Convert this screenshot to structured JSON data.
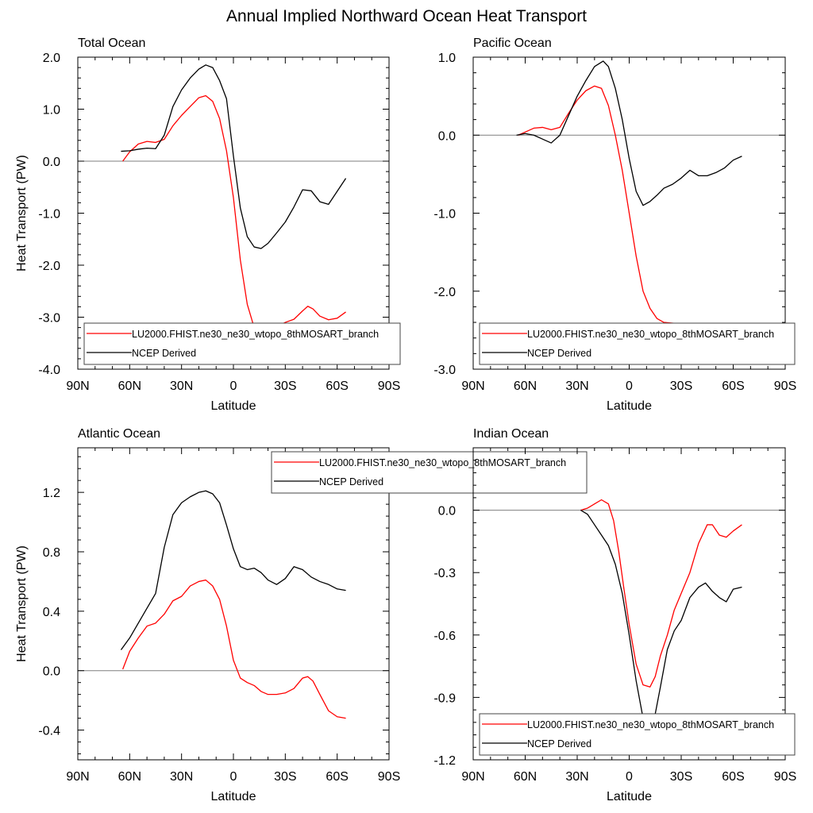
{
  "figure_title": "Annual Implied Northward Ocean Heat Transport",
  "colors": {
    "model": "#ff0000",
    "ncep": "#000000",
    "zero_line": "#7f7f7f",
    "axis": "#000000"
  },
  "chart_data": [
    {
      "type": "line",
      "title": "Total Ocean",
      "xlabel": "Latitude",
      "ylabel": "Heat Transport (PW)",
      "xlim": [
        90,
        -90
      ],
      "ylim": [
        -4.0,
        2.0
      ],
      "xticks": [
        90,
        60,
        30,
        0,
        -30,
        -60,
        -90
      ],
      "xtick_labels": [
        "90N",
        "60N",
        "30N",
        "0",
        "30S",
        "60S",
        "90S"
      ],
      "yticks": [
        -4.0,
        -3.0,
        -2.0,
        -1.0,
        0.0,
        1.0,
        2.0
      ],
      "ytick_labels": [
        "-4.0",
        "-3.0",
        "-2.0",
        "-1.0",
        "0.0",
        "1.0",
        "2.0"
      ],
      "grid": false,
      "legend_position": "bottom",
      "series": [
        {
          "name": "LU2000.FHIST.ne30_ne30_wtopo_8thMOSART_branch",
          "color": "#ff0000",
          "x": [
            64,
            60,
            55,
            50,
            45,
            40,
            35,
            30,
            25,
            20,
            16,
            12,
            8,
            4,
            0,
            -4,
            -8,
            -12,
            -16,
            -20,
            -25,
            -30,
            -35,
            -40,
            -43,
            -46,
            -50,
            -55,
            -60,
            -65
          ],
          "y": [
            0.0,
            0.18,
            0.33,
            0.38,
            0.36,
            0.42,
            0.68,
            0.88,
            1.05,
            1.22,
            1.26,
            1.15,
            0.82,
            0.2,
            -0.7,
            -1.9,
            -2.75,
            -3.2,
            -3.38,
            -3.3,
            -3.18,
            -3.1,
            -3.04,
            -2.88,
            -2.79,
            -2.84,
            -2.98,
            -3.05,
            -3.02,
            -2.9
          ]
        },
        {
          "name": "NCEP Derived",
          "color": "#000000",
          "x": [
            65,
            60,
            55,
            50,
            45,
            40,
            35,
            30,
            25,
            20,
            16,
            12,
            8,
            4,
            0,
            -4,
            -8,
            -12,
            -16,
            -20,
            -25,
            -30,
            -35,
            -40,
            -45,
            -50,
            -55,
            -60,
            -65
          ],
          "y": [
            0.19,
            0.2,
            0.23,
            0.25,
            0.24,
            0.5,
            1.05,
            1.37,
            1.6,
            1.77,
            1.85,
            1.8,
            1.55,
            1.2,
            0.1,
            -0.9,
            -1.45,
            -1.65,
            -1.68,
            -1.58,
            -1.38,
            -1.17,
            -0.88,
            -0.55,
            -0.57,
            -0.78,
            -0.83,
            -0.58,
            -0.33
          ]
        }
      ]
    },
    {
      "type": "line",
      "title": "Pacific Ocean",
      "xlabel": "Latitude",
      "ylabel": "",
      "xlim": [
        90,
        -90
      ],
      "ylim": [
        -3.0,
        1.0
      ],
      "xticks": [
        90,
        60,
        30,
        0,
        -30,
        -60,
        -90
      ],
      "xtick_labels": [
        "90N",
        "60N",
        "30N",
        "0",
        "30S",
        "60S",
        "90S"
      ],
      "yticks": [
        -3.0,
        -2.0,
        -1.0,
        0.0,
        1.0
      ],
      "ytick_labels": [
        "-3.0",
        "-2.0",
        "-1.0",
        "0.0",
        "1.0"
      ],
      "grid": false,
      "legend_position": "bottom",
      "series": [
        {
          "name": "LU2000.FHIST.ne30_ne30_wtopo_8thMOSART_branch",
          "color": "#ff0000",
          "x": [
            64,
            60,
            55,
            50,
            45,
            40,
            35,
            30,
            25,
            20,
            16,
            12,
            8,
            4,
            0,
            -4,
            -8,
            -12,
            -16,
            -20,
            -25,
            -30,
            -35,
            -40,
            -45,
            -48,
            -52,
            -56,
            -60,
            -65
          ],
          "y": [
            0.0,
            0.04,
            0.09,
            0.1,
            0.07,
            0.1,
            0.28,
            0.45,
            0.57,
            0.63,
            0.6,
            0.38,
            0.0,
            -0.45,
            -1.0,
            -1.55,
            -2.0,
            -2.22,
            -2.35,
            -2.4,
            -2.41,
            -2.42,
            -2.48,
            -2.55,
            -2.63,
            -2.68,
            -2.65,
            -2.6,
            -2.55,
            -2.58
          ]
        },
        {
          "name": "NCEP Derived",
          "color": "#000000",
          "x": [
            65,
            60,
            55,
            50,
            45,
            40,
            35,
            30,
            25,
            20,
            15,
            12,
            8,
            4,
            0,
            -4,
            -8,
            -12,
            -16,
            -20,
            -25,
            -30,
            -35,
            -40,
            -45,
            -50,
            -55,
            -60,
            -65
          ],
          "y": [
            0.0,
            0.02,
            0.0,
            -0.05,
            -0.1,
            0.0,
            0.25,
            0.5,
            0.7,
            0.88,
            0.95,
            0.88,
            0.6,
            0.2,
            -0.3,
            -0.72,
            -0.9,
            -0.85,
            -0.77,
            -0.68,
            -0.63,
            -0.55,
            -0.45,
            -0.52,
            -0.52,
            -0.48,
            -0.42,
            -0.32,
            -0.27
          ]
        }
      ]
    },
    {
      "type": "line",
      "title": "Atlantic Ocean",
      "xlabel": "Latitude",
      "ylabel": "Heat Transport (PW)",
      "xlim": [
        90,
        -90
      ],
      "ylim": [
        -0.6,
        1.5
      ],
      "xticks": [
        90,
        60,
        30,
        0,
        -30,
        -60,
        -90
      ],
      "xtick_labels": [
        "90N",
        "60N",
        "30N",
        "0",
        "30S",
        "60S",
        "90S"
      ],
      "yticks": [
        -0.4,
        0.0,
        0.4,
        0.8,
        1.2
      ],
      "ytick_labels": [
        "-0.4",
        "0.0",
        "0.4",
        "0.8",
        "1.2"
      ],
      "grid": false,
      "legend_position": "top-center",
      "series": [
        {
          "name": "LU2000.FHIST.ne30_ne30_wtopo_8thMOSART_branch",
          "color": "#ff0000",
          "x": [
            64,
            60,
            55,
            50,
            45,
            40,
            35,
            30,
            25,
            20,
            16,
            12,
            8,
            4,
            0,
            -4,
            -8,
            -12,
            -16,
            -20,
            -25,
            -30,
            -35,
            -40,
            -43,
            -46,
            -50,
            -55,
            -60,
            -65
          ],
          "y": [
            0.01,
            0.13,
            0.22,
            0.3,
            0.32,
            0.38,
            0.47,
            0.5,
            0.57,
            0.6,
            0.61,
            0.57,
            0.48,
            0.3,
            0.07,
            -0.05,
            -0.08,
            -0.1,
            -0.14,
            -0.16,
            -0.16,
            -0.15,
            -0.12,
            -0.05,
            -0.04,
            -0.07,
            -0.16,
            -0.27,
            -0.31,
            -0.32
          ]
        },
        {
          "name": "NCEP Derived",
          "color": "#000000",
          "x": [
            65,
            60,
            55,
            50,
            45,
            40,
            35,
            30,
            25,
            20,
            16,
            12,
            8,
            4,
            0,
            -4,
            -8,
            -12,
            -16,
            -20,
            -25,
            -30,
            -35,
            -40,
            -45,
            -50,
            -55,
            -60,
            -65
          ],
          "y": [
            0.14,
            0.22,
            0.32,
            0.42,
            0.52,
            0.83,
            1.05,
            1.13,
            1.17,
            1.2,
            1.21,
            1.19,
            1.13,
            0.98,
            0.82,
            0.7,
            0.68,
            0.69,
            0.66,
            0.61,
            0.58,
            0.62,
            0.7,
            0.68,
            0.63,
            0.6,
            0.58,
            0.55,
            0.54
          ]
        }
      ]
    },
    {
      "type": "line",
      "title": "Indian Ocean",
      "xlabel": "Latitude",
      "ylabel": "",
      "xlim": [
        90,
        -90
      ],
      "ylim": [
        -1.2,
        0.3
      ],
      "xticks": [
        90,
        60,
        30,
        0,
        -30,
        -60,
        -90
      ],
      "xtick_labels": [
        "90N",
        "60N",
        "30N",
        "0",
        "30S",
        "60S",
        "90S"
      ],
      "yticks": [
        -1.2,
        -0.9,
        -0.6,
        -0.3,
        0.0
      ],
      "ytick_labels": [
        "-1.2",
        "-0.9",
        "-0.6",
        "-0.3",
        "0.0"
      ],
      "grid": false,
      "legend_position": "bottom",
      "series": [
        {
          "name": "LU2000.FHIST.ne30_ne30_wtopo_8thMOSART_branch",
          "color": "#ff0000",
          "x": [
            28,
            24,
            20,
            16,
            12,
            9,
            6,
            3,
            0,
            -4,
            -8,
            -12,
            -15,
            -18,
            -22,
            -26,
            -30,
            -35,
            -40,
            -45,
            -48,
            -52,
            -56,
            -60,
            -65
          ],
          "y": [
            0.0,
            0.01,
            0.03,
            0.05,
            0.03,
            -0.05,
            -0.2,
            -0.38,
            -0.55,
            -0.74,
            -0.84,
            -0.85,
            -0.8,
            -0.7,
            -0.6,
            -0.48,
            -0.4,
            -0.3,
            -0.16,
            -0.07,
            -0.07,
            -0.12,
            -0.13,
            -0.1,
            -0.07
          ]
        },
        {
          "name": "NCEP Derived",
          "color": "#000000",
          "x": [
            28,
            24,
            20,
            16,
            12,
            8,
            4,
            0,
            -4,
            -8,
            -12,
            -15,
            -18,
            -22,
            -26,
            -30,
            -35,
            -40,
            -44,
            -48,
            -52,
            -56,
            -60,
            -65
          ],
          "y": [
            0.0,
            -0.02,
            -0.07,
            -0.12,
            -0.17,
            -0.26,
            -0.4,
            -0.6,
            -0.82,
            -1.0,
            -1.03,
            -0.98,
            -0.85,
            -0.67,
            -0.58,
            -0.53,
            -0.42,
            -0.37,
            -0.35,
            -0.39,
            -0.42,
            -0.44,
            -0.38,
            -0.37
          ]
        }
      ]
    }
  ]
}
